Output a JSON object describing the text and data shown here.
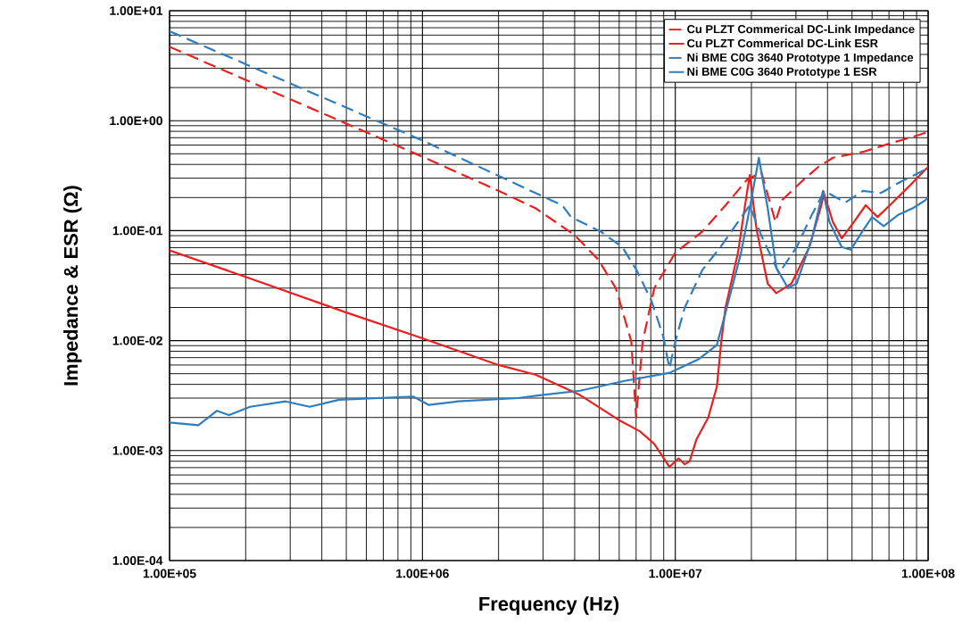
{
  "chart_data": {
    "type": "line",
    "xlabel": "Frequency (Hz)",
    "ylabel": "Impedance & ESR (Ω)",
    "log": "xy",
    "grid": true,
    "legend": "top right",
    "xlim": [
      100000,
      100000000
    ],
    "ylim": [
      0.0001,
      10
    ],
    "xticks": [
      {
        "value": 100000,
        "label": "1.00E+05"
      },
      {
        "value": 1000000,
        "label": "1.00E+06"
      },
      {
        "value": 10000000,
        "label": "1.00E+07"
      },
      {
        "value": 100000000,
        "label": "1.00E+08"
      }
    ],
    "yticks": [
      {
        "value": 0.0001,
        "label": "1.00E-04"
      },
      {
        "value": 0.001,
        "label": "1.00E-03"
      },
      {
        "value": 0.01,
        "label": "1.00E-02"
      },
      {
        "value": 0.1,
        "label": "1.00E-01"
      },
      {
        "value": 1,
        "label": "1.00E+00"
      },
      {
        "value": 10,
        "label": "1.00E+01"
      }
    ],
    "series": [
      {
        "name": "Cu PLZT Commerical DC-Link Impedance",
        "color": "#e8201f",
        "line_style": "dashed",
        "x": [
          100000,
          200000,
          1000000,
          2000000,
          2800000,
          4000000,
          4940000,
          5820000,
          6700000,
          7000000,
          7430000,
          8260000,
          10000000,
          12800000,
          15800000,
          19200000,
          21900000,
          24900000,
          26500000,
          32100000,
          36800000,
          42000000,
          55200000,
          72300000,
          89900000,
          100000000
        ],
        "values": [
          4.7,
          2.35,
          0.47,
          0.23,
          0.16,
          0.091,
          0.055,
          0.03,
          0.0098,
          0.002,
          0.0098,
          0.03,
          0.063,
          0.098,
          0.17,
          0.29,
          0.34,
          0.12,
          0.19,
          0.29,
          0.38,
          0.46,
          0.52,
          0.63,
          0.73,
          0.79
        ]
      },
      {
        "name": "Cu PLZT Commerical DC-Link ESR",
        "color": "#e8201f",
        "line_style": "solid",
        "x": [
          100000,
          200000,
          500000,
          1000000,
          2000000,
          2800000,
          4200000,
          5970000,
          7240000,
          8260000,
          9480000,
          10300000,
          10900000,
          11400000,
          12100000,
          13500000,
          14600000,
          15200000,
          15800000,
          17700000,
          19200000,
          19700000,
          21000000,
          23200000,
          25100000,
          28800000,
          33900000,
          37800000,
          38700000,
          42000000,
          45500000,
          50900000,
          56600000,
          63100000,
          72300000,
          85100000,
          97700000,
          100000000
        ],
        "values": [
          0.066,
          0.038,
          0.018,
          0.0105,
          0.006,
          0.0049,
          0.0032,
          0.0019,
          0.0015,
          0.00115,
          0.00071,
          0.00085,
          0.00075,
          0.0008,
          0.00125,
          0.002,
          0.0038,
          0.0098,
          0.02,
          0.063,
          0.22,
          0.32,
          0.1,
          0.033,
          0.027,
          0.033,
          0.071,
          0.17,
          0.22,
          0.12,
          0.085,
          0.12,
          0.17,
          0.133,
          0.18,
          0.26,
          0.36,
          0.38
        ]
      },
      {
        "name": "Ni BME C0G 3640 Prototype 1 Impedance",
        "color": "#2e7dbf",
        "line_style": "dashed",
        "x": [
          100000,
          1000000,
          2800000,
          3570000,
          3870000,
          5070000,
          6170000,
          7020000,
          8050000,
          8950000,
          9480000,
          10000000,
          10900000,
          12800000,
          15100000,
          17700000,
          19700000,
          21900000,
          25700000,
          30200000,
          34700000,
          38900000,
          47000000,
          55200000,
          65000000,
          78300000,
          97700000,
          100000000
        ],
        "values": [
          6.5,
          0.66,
          0.22,
          0.17,
          0.133,
          0.098,
          0.071,
          0.044,
          0.023,
          0.011,
          0.0056,
          0.0098,
          0.02,
          0.044,
          0.071,
          0.12,
          0.17,
          0.09,
          0.041,
          0.071,
          0.14,
          0.23,
          0.18,
          0.23,
          0.22,
          0.28,
          0.36,
          0.38
        ]
      },
      {
        "name": "Ni BME C0G 3640 Prototype 1 ESR",
        "color": "#2e7dbf",
        "line_style": "solid",
        "x": [
          100000,
          130000,
          154000,
          172000,
          208000,
          288000,
          358000,
          468000,
          920000,
          1060000,
          1380000,
          2380000,
          2950000,
          4200000,
          6300000,
          9500000,
          12400000,
          14600000,
          15800000,
          18200000,
          19700000,
          21400000,
          23200000,
          25100000,
          27900000,
          30200000,
          34700000,
          38400000,
          40700000,
          45500000,
          49400000,
          55200000,
          60000000,
          66700000,
          76400000,
          87000000,
          97700000,
          100000000
        ],
        "values": [
          0.0018,
          0.0017,
          0.0023,
          0.0021,
          0.0025,
          0.0028,
          0.0025,
          0.0029,
          0.0031,
          0.0026,
          0.0028,
          0.003,
          0.0032,
          0.0035,
          0.0043,
          0.0051,
          0.0068,
          0.0091,
          0.018,
          0.063,
          0.16,
          0.46,
          0.16,
          0.046,
          0.03,
          0.033,
          0.085,
          0.23,
          0.12,
          0.071,
          0.067,
          0.1,
          0.133,
          0.11,
          0.14,
          0.16,
          0.19,
          0.2
        ]
      }
    ]
  }
}
